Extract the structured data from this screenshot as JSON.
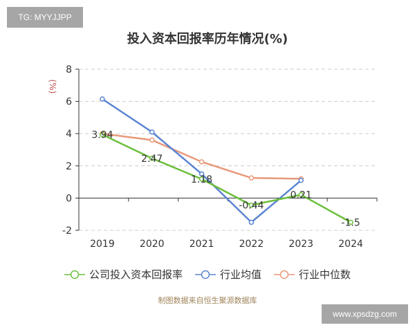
{
  "badges": {
    "tg": "TG: MYYJJPP",
    "site": "www.xpsdzg.com"
  },
  "source_note": "制图数据来自恒生聚源数据库",
  "colors": {
    "company": "#6cbf3c",
    "industry_avg": "#5b84d1",
    "industry_median": "#e8997a",
    "grid": "#cccccc",
    "unit": "#c0504d"
  },
  "chart_data": {
    "type": "line",
    "title": "投入资本回报率历年情况(%)",
    "xlabel": "",
    "ylabel": "(%)",
    "ylim": [
      -2,
      8
    ],
    "yticks": [
      -2,
      0,
      2,
      4,
      6,
      8
    ],
    "grid": true,
    "legend_position": "bottom",
    "categories": [
      "2019",
      "2020",
      "2021",
      "2022",
      "2023",
      "2024"
    ],
    "series": [
      {
        "name": "公司投入资本回报率",
        "values": [
          3.94,
          2.47,
          1.18,
          -0.44,
          0.21,
          -1.5
        ],
        "labels": [
          "3.94",
          "2.47",
          "1.18",
          "-0.44",
          "0.21",
          "-1.5"
        ]
      },
      {
        "name": "行业均值",
        "values": [
          6.15,
          4.1,
          1.5,
          -1.5,
          1.1,
          null
        ]
      },
      {
        "name": "行业中位数",
        "values": [
          4.0,
          3.6,
          2.25,
          1.25,
          1.2,
          null
        ]
      }
    ]
  }
}
